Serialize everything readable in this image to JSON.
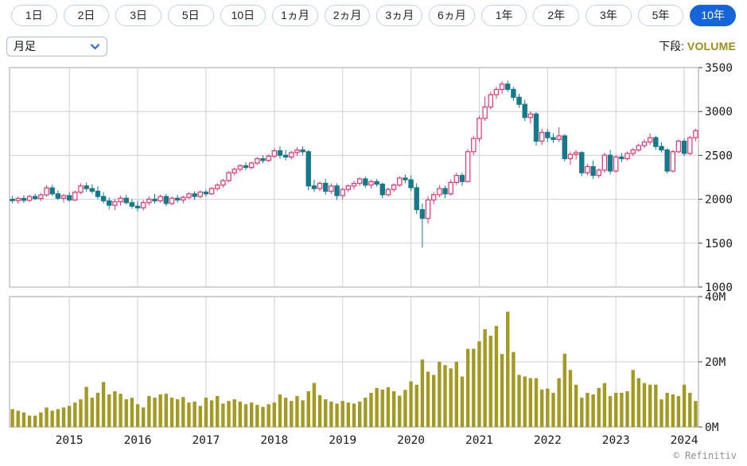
{
  "toolbar": {
    "range_buttons": [
      {
        "label": "1日",
        "selected": false
      },
      {
        "label": "2日",
        "selected": false
      },
      {
        "label": "3日",
        "selected": false
      },
      {
        "label": "5日",
        "selected": false
      },
      {
        "label": "10日",
        "selected": false
      },
      {
        "label": "1ヵ月",
        "selected": false
      },
      {
        "label": "2ヵ月",
        "selected": false
      },
      {
        "label": "3ヵ月",
        "selected": false
      },
      {
        "label": "6ヵ月",
        "selected": false
      },
      {
        "label": "1年",
        "selected": false
      },
      {
        "label": "2年",
        "selected": false
      },
      {
        "label": "3年",
        "selected": false
      },
      {
        "label": "5年",
        "selected": false
      },
      {
        "label": "10年",
        "selected": true
      }
    ],
    "interval_select": {
      "value": "月足"
    },
    "lower_pane": {
      "label": "下段:",
      "value": "VOLUME"
    }
  },
  "attribution": "© Refinitiv",
  "chart_data": {
    "type": "candlestick",
    "interval": "monthly",
    "start_month": "2014-03",
    "legend_position": "none",
    "grid": true,
    "price_axis": {
      "min": 1000,
      "max": 3500,
      "ticks": [
        3500,
        3000,
        2500,
        2000,
        1500,
        1000
      ]
    },
    "volume_axis": {
      "min_millions": 0,
      "max_millions": 40,
      "ticks": [
        {
          "value": 40,
          "label": "40M"
        },
        {
          "value": 20,
          "label": "20M"
        },
        {
          "value": 0,
          "label": "0M"
        }
      ]
    },
    "x_axis": {
      "year_ticks": [
        2015,
        2016,
        2017,
        2018,
        2019,
        2020,
        2021,
        2022,
        2023,
        2024
      ]
    },
    "colors": {
      "up": "#e8336d",
      "down": "#15798a",
      "up_fill": "#ffffff",
      "volume": "#a39a24",
      "grid": "#cfcfd6",
      "border": "#b4b4bc",
      "axis_text": "#1a1a1a",
      "selected_button": "#1565d8"
    },
    "candles_ohlc": [
      [
        2000,
        2040,
        1955,
        1985
      ],
      [
        1985,
        2030,
        1950,
        2010
      ],
      [
        2010,
        2045,
        1960,
        1988
      ],
      [
        1988,
        2052,
        1968,
        2032
      ],
      [
        2032,
        2062,
        1990,
        2008
      ],
      [
        2008,
        2070,
        1982,
        2050
      ],
      [
        2050,
        2160,
        2030,
        2130
      ],
      [
        2130,
        2165,
        2040,
        2062
      ],
      [
        2062,
        2100,
        1992,
        2012
      ],
      [
        2012,
        2062,
        1962,
        2042
      ],
      [
        2042,
        2082,
        1972,
        1992
      ],
      [
        1992,
        2100,
        1980,
        2080
      ],
      [
        2080,
        2180,
        2058,
        2152
      ],
      [
        2152,
        2192,
        2088,
        2122
      ],
      [
        2122,
        2172,
        2062,
        2092
      ],
      [
        2092,
        2150,
        2002,
        2032
      ],
      [
        2032,
        2082,
        1952,
        1982
      ],
      [
        1982,
        2022,
        1888,
        1932
      ],
      [
        1932,
        2002,
        1880,
        1972
      ],
      [
        1972,
        2042,
        1930,
        2012
      ],
      [
        2012,
        2052,
        1942,
        1962
      ],
      [
        1962,
        2002,
        1892,
        1922
      ],
      [
        1922,
        1982,
        1862,
        1902
      ],
      [
        1902,
        1992,
        1872,
        1962
      ],
      [
        1962,
        2032,
        1932,
        2002
      ],
      [
        2002,
        2062,
        1952,
        1982
      ],
      [
        1982,
        2052,
        1962,
        2032
      ],
      [
        2032,
        2062,
        1922,
        1952
      ],
      [
        1952,
        2032,
        1932,
        2012
      ],
      [
        2012,
        2052,
        1962,
        1992
      ],
      [
        1992,
        2042,
        1952,
        2022
      ],
      [
        2022,
        2082,
        2002,
        2062
      ],
      [
        2062,
        2092,
        1992,
        2032
      ],
      [
        2032,
        2102,
        2012,
        2082
      ],
      [
        2082,
        2112,
        2032,
        2062
      ],
      [
        2062,
        2142,
        2052,
        2122
      ],
      [
        2122,
        2182,
        2092,
        2162
      ],
      [
        2162,
        2232,
        2132,
        2212
      ],
      [
        2212,
        2322,
        2192,
        2302
      ],
      [
        2302,
        2362,
        2272,
        2342
      ],
      [
        2342,
        2402,
        2312,
        2382
      ],
      [
        2382,
        2422,
        2332,
        2362
      ],
      [
        2362,
        2432,
        2342,
        2412
      ],
      [
        2412,
        2482,
        2392,
        2462
      ],
      [
        2462,
        2502,
        2412,
        2442
      ],
      [
        2442,
        2512,
        2422,
        2492
      ],
      [
        2492,
        2582,
        2472,
        2552
      ],
      [
        2552,
        2602,
        2462,
        2502
      ],
      [
        2502,
        2562,
        2442,
        2482
      ],
      [
        2482,
        2552,
        2452,
        2532
      ],
      [
        2532,
        2592,
        2492,
        2562
      ],
      [
        2562,
        2602,
        2502,
        2542
      ],
      [
        2542,
        2562,
        2102,
        2152
      ],
      [
        2152,
        2222,
        2082,
        2122
      ],
      [
        2122,
        2202,
        2092,
        2182
      ],
      [
        2182,
        2232,
        2052,
        2092
      ],
      [
        2092,
        2182,
        2062,
        2152
      ],
      [
        2152,
        2182,
        1992,
        2042
      ],
      [
        2042,
        2132,
        2002,
        2112
      ],
      [
        2112,
        2172,
        2082,
        2152
      ],
      [
        2152,
        2212,
        2112,
        2182
      ],
      [
        2182,
        2252,
        2152,
        2232
      ],
      [
        2232,
        2262,
        2132,
        2162
      ],
      [
        2162,
        2222,
        2122,
        2202
      ],
      [
        2202,
        2232,
        2142,
        2172
      ],
      [
        2172,
        2192,
        2012,
        2052
      ],
      [
        2052,
        2132,
        2032,
        2112
      ],
      [
        2112,
        2182,
        2082,
        2162
      ],
      [
        2162,
        2262,
        2142,
        2242
      ],
      [
        2242,
        2282,
        2182,
        2222
      ],
      [
        2222,
        2272,
        2092,
        2132
      ],
      [
        2132,
        2182,
        1832,
        1882
      ],
      [
        1882,
        1952,
        1452,
        1782
      ],
      [
        1782,
        2032,
        1722,
        1992
      ],
      [
        1992,
        2082,
        1942,
        2052
      ],
      [
        2052,
        2162,
        2022,
        2122
      ],
      [
        2122,
        2152,
        2012,
        2062
      ],
      [
        2062,
        2222,
        2042,
        2192
      ],
      [
        2192,
        2302,
        2162,
        2272
      ],
      [
        2272,
        2302,
        2152,
        2202
      ],
      [
        2202,
        2572,
        2192,
        2542
      ],
      [
        2542,
        2722,
        2502,
        2692
      ],
      [
        2692,
        2952,
        2652,
        2922
      ],
      [
        2922,
        3172,
        2892,
        3052
      ],
      [
        3052,
        3222,
        3022,
        3192
      ],
      [
        3192,
        3282,
        3142,
        3252
      ],
      [
        3252,
        3342,
        3202,
        3312
      ],
      [
        3312,
        3352,
        3222,
        3252
      ],
      [
        3252,
        3282,
        3122,
        3162
      ],
      [
        3162,
        3202,
        3042,
        3082
      ],
      [
        3082,
        3132,
        2892,
        2932
      ],
      [
        2932,
        3002,
        2862,
        2972
      ],
      [
        2972,
        2992,
        2612,
        2662
      ],
      [
        2662,
        2802,
        2622,
        2762
      ],
      [
        2762,
        2802,
        2652,
        2702
      ],
      [
        2702,
        2752,
        2642,
        2682
      ],
      [
        2682,
        2822,
        2652,
        2722
      ],
      [
        2722,
        2742,
        2432,
        2462
      ],
      [
        2462,
        2542,
        2392,
        2512
      ],
      [
        2512,
        2562,
        2452,
        2532
      ],
      [
        2532,
        2547,
        2262,
        2302
      ],
      [
        2302,
        2402,
        2272,
        2372
      ],
      [
        2372,
        2442,
        2232,
        2272
      ],
      [
        2272,
        2352,
        2242,
        2332
      ],
      [
        2332,
        2532,
        2302,
        2502
      ],
      [
        2502,
        2562,
        2282,
        2322
      ],
      [
        2322,
        2502,
        2302,
        2482
      ],
      [
        2482,
        2532,
        2422,
        2462
      ],
      [
        2462,
        2542,
        2442,
        2522
      ],
      [
        2522,
        2582,
        2492,
        2562
      ],
      [
        2562,
        2632,
        2542,
        2612
      ],
      [
        2612,
        2682,
        2582,
        2652
      ],
      [
        2652,
        2752,
        2622,
        2702
      ],
      [
        2702,
        2722,
        2562,
        2602
      ],
      [
        2602,
        2652,
        2532,
        2562
      ],
      [
        2562,
        2582,
        2292,
        2322
      ],
      [
        2322,
        2562,
        2302,
        2542
      ],
      [
        2542,
        2682,
        2522,
        2662
      ],
      [
        2662,
        2692,
        2492,
        2522
      ],
      [
        2522,
        2722,
        2502,
        2702
      ],
      [
        2702,
        2802,
        2662,
        2782
      ]
    ],
    "volumes_millions": [
      5.5,
      5,
      4.5,
      3.5,
      3.5,
      4.5,
      6,
      5,
      5.5,
      6,
      6.5,
      7.5,
      8.5,
      12.3,
      9,
      10.5,
      13.8,
      10,
      11,
      10.2,
      8.5,
      9,
      7,
      6,
      9.5,
      9,
      10,
      10.2,
      9,
      8.5,
      9.2,
      7.5,
      7.8,
      6.5,
      9,
      8.2,
      9.5,
      7.2,
      8,
      8.5,
      7.8,
      7,
      7.5,
      6.8,
      6.2,
      7,
      7.5,
      10,
      9,
      8,
      9.5,
      8.2,
      11,
      13.5,
      9.8,
      8.5,
      7.8,
      7.2,
      8,
      7.5,
      7.2,
      7.8,
      9,
      10.5,
      12,
      11.5,
      12.2,
      11,
      9.6,
      11.4,
      14,
      13,
      20.7,
      17,
      16,
      20,
      19,
      18,
      20,
      15.5,
      24,
      24,
      26.3,
      30,
      28,
      31,
      22.4,
      35.4,
      23,
      16,
      15.5,
      15,
      15,
      11.5,
      11.8,
      10.5,
      15,
      22.5,
      17.5,
      13,
      9,
      10.5,
      10,
      12,
      13.5,
      9.5,
      10.5,
      10.5,
      11,
      17.5,
      15,
      13.5,
      13,
      13,
      8.5,
      10.5,
      10,
      9.5,
      13,
      10.5,
      8
    ]
  }
}
